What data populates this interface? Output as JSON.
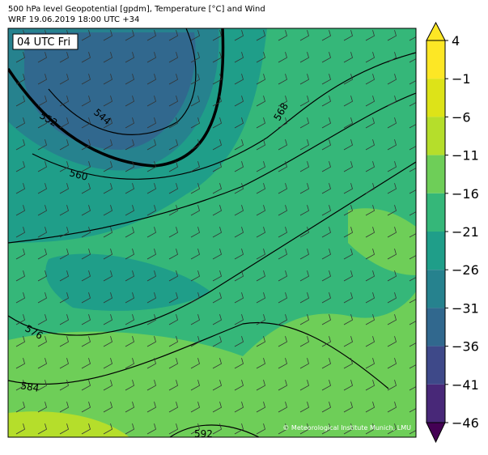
{
  "header": {
    "title": "500 hPa level Geopotential [gpdm], Temperature [°C] and Wind",
    "subtitle": "WRF 19.06.2019 18:00 UTC +34"
  },
  "map": {
    "time_label": "04 UTC Fri",
    "credit": "© Meteorological Institute Munich, LMU",
    "contour_labels": [
      "552",
      "544",
      "560",
      "568",
      "576",
      "584",
      "592"
    ]
  },
  "colorbar": {
    "colors": [
      "#440154",
      "#482878",
      "#3e4989",
      "#31688e",
      "#26828e",
      "#1f9e89",
      "#35b779",
      "#6ece58",
      "#b5de2b",
      "#dde318",
      "#fde725"
    ],
    "ticks": [
      {
        "value": 4,
        "label": "4"
      },
      {
        "value": -1,
        "label": "−1"
      },
      {
        "value": -6,
        "label": "−6"
      },
      {
        "value": -11,
        "label": "−11"
      },
      {
        "value": -16,
        "label": "−16"
      },
      {
        "value": -21,
        "label": "−21"
      },
      {
        "value": -26,
        "label": "−26"
      },
      {
        "value": -31,
        "label": "−31"
      },
      {
        "value": -36,
        "label": "−36"
      },
      {
        "value": -41,
        "label": "−41"
      },
      {
        "value": -46,
        "label": "−46"
      }
    ]
  }
}
